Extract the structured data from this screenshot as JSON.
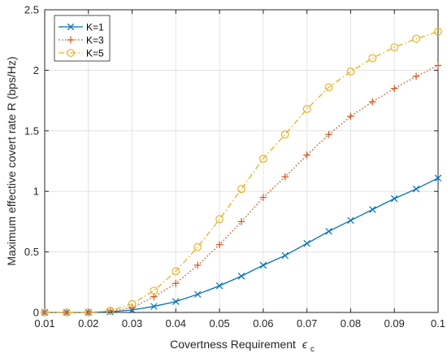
{
  "chart_data": {
    "type": "line",
    "xlabel": "Covertness Requirement",
    "xlabel_symbol": "ϵ",
    "xlabel_subscript": "c",
    "ylabel": "Maximum effective covert rate R (bps/Hz)",
    "xlim": [
      0.01,
      0.1
    ],
    "ylim": [
      0,
      2.5
    ],
    "xticks": [
      "0.01",
      "0.02",
      "0.03",
      "0.04",
      "0.05",
      "0.06",
      "0.07",
      "0.08",
      "0.09",
      "0.1"
    ],
    "yticks": [
      "0",
      "0.5",
      "1",
      "1.5",
      "2",
      "2.5"
    ],
    "grid": true,
    "legend_position": "top-left",
    "x": [
      0.01,
      0.015,
      0.02,
      0.025,
      0.03,
      0.035,
      0.04,
      0.045,
      0.05,
      0.055,
      0.06,
      0.065,
      0.07,
      0.075,
      0.08,
      0.085,
      0.09,
      0.095,
      0.1
    ],
    "series": [
      {
        "name": "K=1",
        "color": "#0072BD",
        "marker": "x",
        "line_style": "solid",
        "values": [
          0,
          0,
          0,
          0.005,
          0.02,
          0.05,
          0.09,
          0.15,
          0.22,
          0.3,
          0.39,
          0.47,
          0.57,
          0.67,
          0.76,
          0.85,
          0.94,
          1.02,
          1.11
        ]
      },
      {
        "name": "K=3",
        "color": "#D95319",
        "marker": "plus",
        "line_style": "dotted",
        "values": [
          0,
          0,
          0,
          0.01,
          0.04,
          0.13,
          0.24,
          0.39,
          0.56,
          0.75,
          0.95,
          1.12,
          1.3,
          1.47,
          1.62,
          1.74,
          1.85,
          1.95,
          2.04
        ]
      },
      {
        "name": "K=5",
        "color": "#EDB120",
        "marker": "circle",
        "line_style": "dashdot",
        "values": [
          0,
          0,
          0,
          0.015,
          0.07,
          0.18,
          0.34,
          0.54,
          0.77,
          1.02,
          1.27,
          1.47,
          1.68,
          1.86,
          1.99,
          2.1,
          2.19,
          2.26,
          2.32
        ]
      }
    ]
  }
}
